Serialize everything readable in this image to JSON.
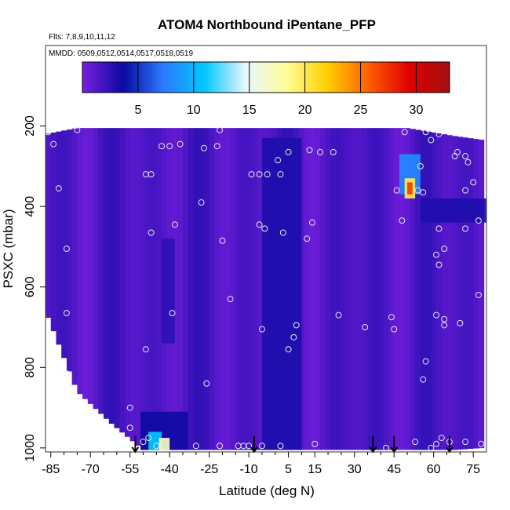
{
  "chart_data": {
    "type": "heatmap",
    "title": "ATOM4 Northbound iPentane_PFP",
    "subtitle_flights": "Flts: 7,8,9,10,11,12",
    "subtitle_dates": "MMDD: 0509,0512,0514,0517,0518,0519",
    "xlabel": "Latitude (deg N)",
    "ylabel": "PSXC (mbar)",
    "xlim": [
      -87,
      80
    ],
    "ylim": [
      1010,
      0
    ],
    "x_ticks": [
      "-85",
      "-70",
      "-55",
      "-40",
      "-25",
      "-10",
      "5",
      "15",
      "30",
      "45",
      "60",
      "75"
    ],
    "x_tick_values": [
      -85,
      -70,
      -55,
      -40,
      -25,
      -10,
      5,
      15,
      30,
      45,
      60,
      75
    ],
    "y_ticks": [
      "200",
      "400",
      "600",
      "800",
      "1000"
    ],
    "y_tick_values": [
      200,
      400,
      600,
      800,
      1000
    ],
    "colorbar": {
      "range": [
        0,
        33
      ],
      "ticks": [
        "5",
        "10",
        "15",
        "20",
        "25",
        "30"
      ],
      "tick_values": [
        5,
        10,
        15,
        20,
        25,
        30
      ],
      "colors": [
        "#7a1fe0",
        "#0a0aa0",
        "#2b7bff",
        "#00c8ff",
        "#e8f6ff",
        "#ffff99",
        "#ffd000",
        "#ff6000",
        "#e00000",
        "#a01010"
      ]
    },
    "field": {
      "background_value": 1.5,
      "curtain_bounds": [
        {
          "lat": -87,
          "p_top": 220,
          "p_bottom": 660
        },
        {
          "lat": -75,
          "p_top": 205,
          "p_bottom": 860
        },
        {
          "lat": -62,
          "p_top": 205,
          "p_bottom": 940
        },
        {
          "lat": -50,
          "p_top": 205,
          "p_bottom": 1005
        },
        {
          "lat": 50,
          "p_top": 205,
          "p_bottom": 1005
        },
        {
          "lat": 68,
          "p_top": 225,
          "p_bottom": 1005
        },
        {
          "lat": 79,
          "p_top": 235,
          "p_bottom": 1000
        }
      ],
      "features": [
        {
          "lat": [
            -51,
            -33
          ],
          "p": [
            910,
            1005
          ],
          "value": 3.5
        },
        {
          "lat": [
            -48,
            -43
          ],
          "p": [
            960,
            1005
          ],
          "value": 11
        },
        {
          "lat": [
            -44,
            -40
          ],
          "p": [
            975,
            1005
          ],
          "value": 17
        },
        {
          "lat": [
            -5,
            10
          ],
          "p": [
            230,
            1005
          ],
          "value": 3
        },
        {
          "lat": [
            -43,
            -38
          ],
          "p": [
            480,
            740
          ],
          "value": 2.5
        },
        {
          "lat": [
            47,
            55
          ],
          "p": [
            270,
            370
          ],
          "value": 8
        },
        {
          "lat": [
            49,
            53
          ],
          "p": [
            330,
            380
          ],
          "value": 20
        },
        {
          "lat": [
            50,
            52
          ],
          "p": [
            340,
            370
          ],
          "value": 27
        },
        {
          "lat": [
            55,
            80
          ],
          "p": [
            380,
            440
          ],
          "value": 3
        }
      ]
    },
    "sample_points": [
      [
        -86,
        215
      ],
      [
        -84,
        245
      ],
      [
        -82,
        355
      ],
      [
        -75,
        210
      ],
      [
        -79,
        505
      ],
      [
        -79,
        665
      ],
      [
        -79,
        815
      ],
      [
        -55,
        900
      ],
      [
        -55,
        950
      ],
      [
        -50,
        985
      ],
      [
        -48,
        975
      ],
      [
        -45,
        995
      ],
      [
        -49,
        320
      ],
      [
        -47,
        320
      ],
      [
        -47,
        465
      ],
      [
        -43,
        250
      ],
      [
        -40,
        250
      ],
      [
        -36,
        245
      ],
      [
        -39,
        665
      ],
      [
        -49,
        755
      ],
      [
        -27,
        255
      ],
      [
        -22,
        250
      ],
      [
        -21,
        210
      ],
      [
        -28,
        390
      ],
      [
        -26,
        840
      ],
      [
        -38,
        445
      ],
      [
        -20,
        485
      ],
      [
        -17,
        630
      ],
      [
        -14,
        995
      ],
      [
        -10,
        995
      ],
      [
        -6,
        445
      ],
      [
        -9,
        320
      ],
      [
        -6,
        320
      ],
      [
        -3,
        320
      ],
      [
        -5,
        705
      ],
      [
        2,
        320
      ],
      [
        1,
        285
      ],
      [
        3,
        465
      ],
      [
        5,
        265
      ],
      [
        8,
        695
      ],
      [
        7,
        725
      ],
      [
        5,
        755
      ],
      [
        -4,
        455
      ],
      [
        13,
        260
      ],
      [
        17,
        265
      ],
      [
        22,
        265
      ],
      [
        14,
        440
      ],
      [
        12,
        480
      ],
      [
        24,
        670
      ],
      [
        34,
        700
      ],
      [
        44,
        675
      ],
      [
        45,
        705
      ],
      [
        49,
        215
      ],
      [
        48,
        435
      ],
      [
        46,
        360
      ],
      [
        54,
        360
      ],
      [
        55,
        300
      ],
      [
        56,
        365
      ],
      [
        57,
        215
      ],
      [
        59,
        235
      ],
      [
        62,
        220
      ],
      [
        62,
        455
      ],
      [
        61,
        520
      ],
      [
        64,
        505
      ],
      [
        62,
        545
      ],
      [
        61,
        670
      ],
      [
        64,
        680
      ],
      [
        56,
        830
      ],
      [
        57,
        785
      ],
      [
        64,
        695
      ],
      [
        68,
        275
      ],
      [
        69,
        265
      ],
      [
        72,
        275
      ],
      [
        73,
        290
      ],
      [
        72,
        360
      ],
      [
        75,
        340
      ],
      [
        77,
        435
      ],
      [
        72,
        455
      ],
      [
        70,
        690
      ],
      [
        77,
        620
      ],
      [
        78,
        990
      ],
      [
        72,
        985
      ],
      [
        63,
        975
      ],
      [
        61,
        990
      ],
      [
        59,
        1000
      ],
      [
        66,
        985
      ],
      [
        53,
        985
      ],
      [
        42,
        1000
      ],
      [
        15,
        990
      ],
      [
        2,
        995
      ],
      [
        -5,
        995
      ],
      [
        -12,
        995
      ],
      [
        -30,
        995
      ],
      [
        -21,
        995
      ]
    ],
    "markers_latitudes": [
      -53,
      -8,
      37,
      45,
      66
    ],
    "markers_pressure": 1000
  }
}
